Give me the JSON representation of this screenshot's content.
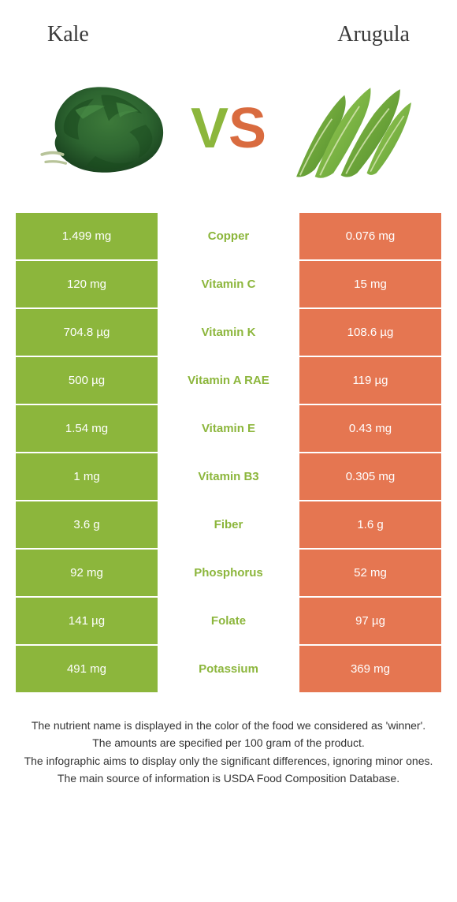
{
  "left_food": "Kale",
  "right_food": "Arugula",
  "left_bg_color": "#8cb63c",
  "right_bg_color": "#e57651",
  "nutrients": [
    {
      "name": "Copper",
      "left": "1.499 mg",
      "right": "0.076 mg",
      "winner": "left"
    },
    {
      "name": "Vitamin C",
      "left": "120 mg",
      "right": "15 mg",
      "winner": "left"
    },
    {
      "name": "Vitamin K",
      "left": "704.8 µg",
      "right": "108.6 µg",
      "winner": "left"
    },
    {
      "name": "Vitamin A RAE",
      "left": "500 µg",
      "right": "119 µg",
      "winner": "left"
    },
    {
      "name": "Vitamin E",
      "left": "1.54 mg",
      "right": "0.43 mg",
      "winner": "left"
    },
    {
      "name": "Vitamin B3",
      "left": "1 mg",
      "right": "0.305 mg",
      "winner": "left"
    },
    {
      "name": "Fiber",
      "left": "3.6 g",
      "right": "1.6 g",
      "winner": "left"
    },
    {
      "name": "Phosphorus",
      "left": "92 mg",
      "right": "52 mg",
      "winner": "left"
    },
    {
      "name": "Folate",
      "left": "141 µg",
      "right": "97 µg",
      "winner": "left"
    },
    {
      "name": "Potassium",
      "left": "491 mg",
      "right": "369 mg",
      "winner": "left"
    }
  ],
  "footer": [
    "The nutrient name is displayed in the color of the food we considered as 'winner'.",
    "The amounts are specified per 100 gram of the product.",
    "The infographic aims to display only the significant differences, ignoring minor ones.",
    "The main source of information is USDA Food Composition Database."
  ]
}
